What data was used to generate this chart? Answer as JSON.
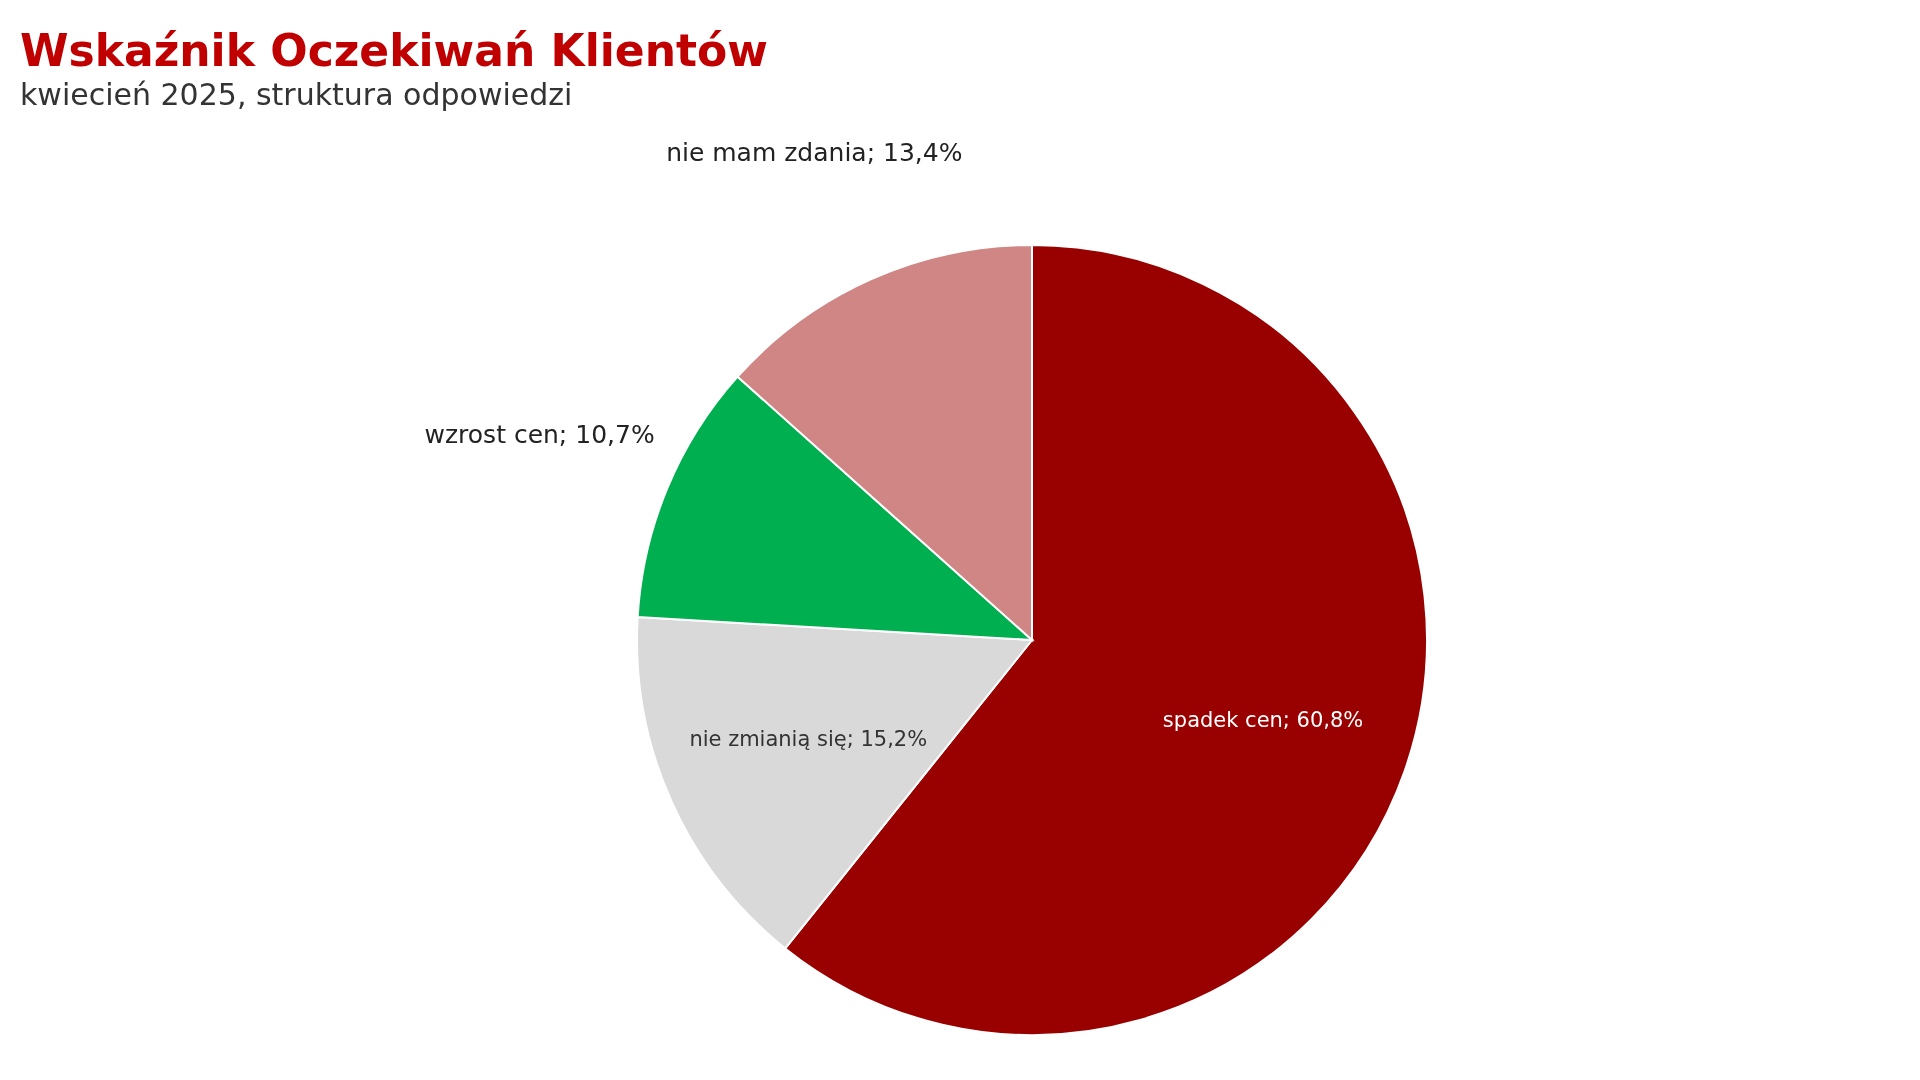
{
  "chart_data": {
    "type": "pie",
    "title": "Wskaźnik Oczekiwań Klientów",
    "subtitle": "kwiecień 2025, struktura odpowiedzi",
    "categories": [
      "spadek cen",
      "nie zmianią się",
      "wzrost cen",
      "nie mam zdania"
    ],
    "values": [
      60.8,
      15.2,
      10.7,
      13.4
    ],
    "value_labels": [
      "60,8%",
      "15,2%",
      "10,7%",
      "13,4%"
    ],
    "colors": [
      "#990000",
      "#d9d9d9",
      "#00b050",
      "#d08684"
    ]
  }
}
